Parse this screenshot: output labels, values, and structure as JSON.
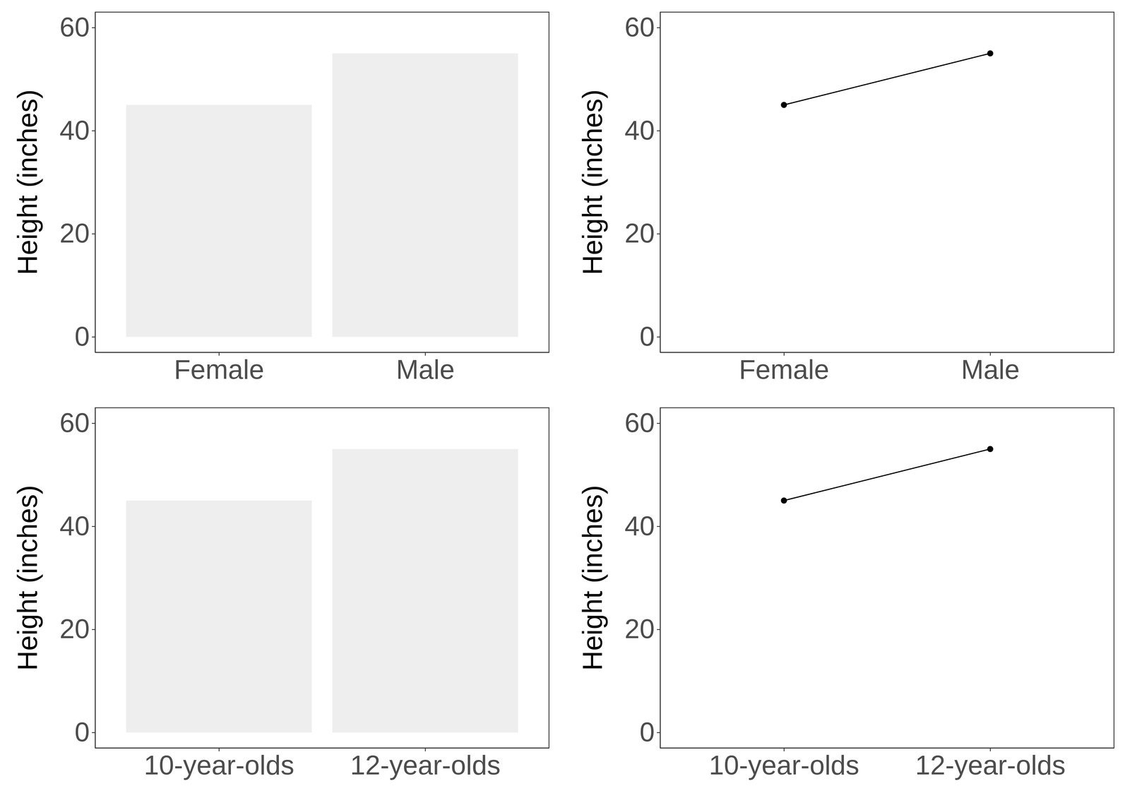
{
  "chart_data": [
    {
      "type": "bar",
      "categories": [
        "Female",
        "Male"
      ],
      "values": [
        45,
        55
      ],
      "color": "#eeeeee",
      "y_label": "Height (inches)",
      "ylim": [
        -3,
        63
      ],
      "yticks": [
        0,
        20,
        40,
        60
      ]
    },
    {
      "type": "line",
      "categories": [
        "Female",
        "Male"
      ],
      "values": [
        45,
        55
      ],
      "color": "#000000",
      "marker": "circle",
      "y_label": "Height (inches)",
      "ylim": [
        -3,
        63
      ],
      "yticks": [
        0,
        20,
        40,
        60
      ]
    },
    {
      "type": "bar",
      "categories": [
        "10-year-olds",
        "12-year-olds"
      ],
      "values": [
        45,
        55
      ],
      "color": "#eeeeee",
      "y_label": "Height (inches)",
      "ylim": [
        -3,
        63
      ],
      "yticks": [
        0,
        20,
        40,
        60
      ]
    },
    {
      "type": "line",
      "categories": [
        "10-year-olds",
        "12-year-olds"
      ],
      "values": [
        45,
        55
      ],
      "color": "#000000",
      "marker": "circle",
      "y_label": "Height (inches)",
      "ylim": [
        -3,
        63
      ],
      "yticks": [
        0,
        20,
        40,
        60
      ]
    }
  ]
}
